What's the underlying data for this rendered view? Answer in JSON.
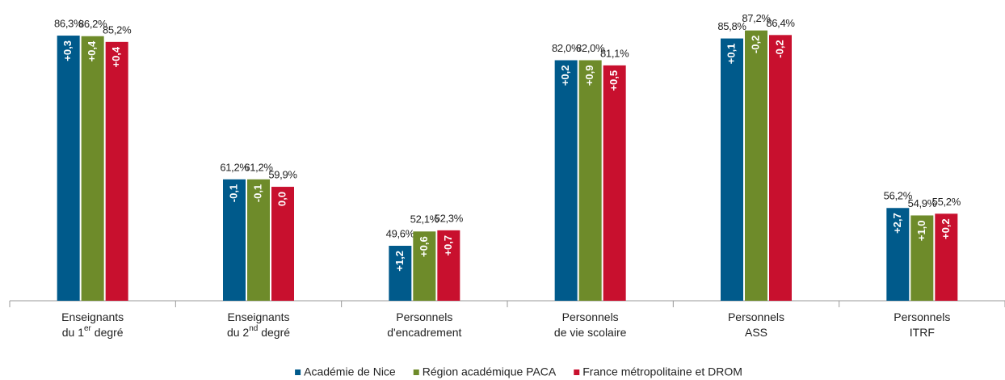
{
  "chart_data": {
    "type": "bar",
    "categories": [
      [
        [
          "Enseignants"
        ],
        [
          "du 1",
          "er",
          " degré"
        ]
      ],
      [
        [
          "Enseignants"
        ],
        [
          "du 2",
          "nd",
          " degré"
        ]
      ],
      [
        [
          "Personnels"
        ],
        [
          "d'encadrement"
        ]
      ],
      [
        [
          "Personnels"
        ],
        [
          "de vie scolaire"
        ]
      ],
      [
        [
          "Personnels"
        ],
        [
          "ASS"
        ]
      ],
      [
        [
          "Personnels"
        ],
        [
          "ITRF"
        ]
      ]
    ],
    "series": [
      {
        "name": "Académie de Nice",
        "color": "#005a8b",
        "values": [
          86.3,
          61.2,
          49.6,
          82.0,
          85.8,
          56.2
        ],
        "value_labels": [
          "86,3%",
          "61,2%",
          "49,6%",
          "82,0%",
          "85,8%",
          "56,2%"
        ],
        "delta_labels": [
          "+0,3",
          "-0,1",
          "+1,2",
          "+0,2",
          "+0,1",
          "+2,7"
        ]
      },
      {
        "name": "Région académique PACA",
        "color": "#6e8b2a",
        "values": [
          86.2,
          61.2,
          52.1,
          82.0,
          87.2,
          54.9
        ],
        "value_labels": [
          "86,2%",
          "61,2%",
          "52,1%",
          "82,0%",
          "87,2%",
          "54,9%"
        ],
        "delta_labels": [
          "+0,4",
          "-0,1",
          "+0,6",
          "+0,9",
          "-0,2",
          "+1,0"
        ]
      },
      {
        "name": "France métropolitaine et DROM",
        "color": "#c8102e",
        "values": [
          85.2,
          59.9,
          52.3,
          81.1,
          86.4,
          55.2
        ],
        "value_labels": [
          "85,2%",
          "59,9%",
          "52,3%",
          "81,1%",
          "86,4%",
          "55,2%"
        ],
        "delta_labels": [
          "+0,4",
          "0,0",
          "+0,7",
          "+0,5",
          "-0,2",
          "+0,2"
        ]
      }
    ],
    "ylim": [
      40,
      88
    ],
    "legend": "bottom"
  }
}
